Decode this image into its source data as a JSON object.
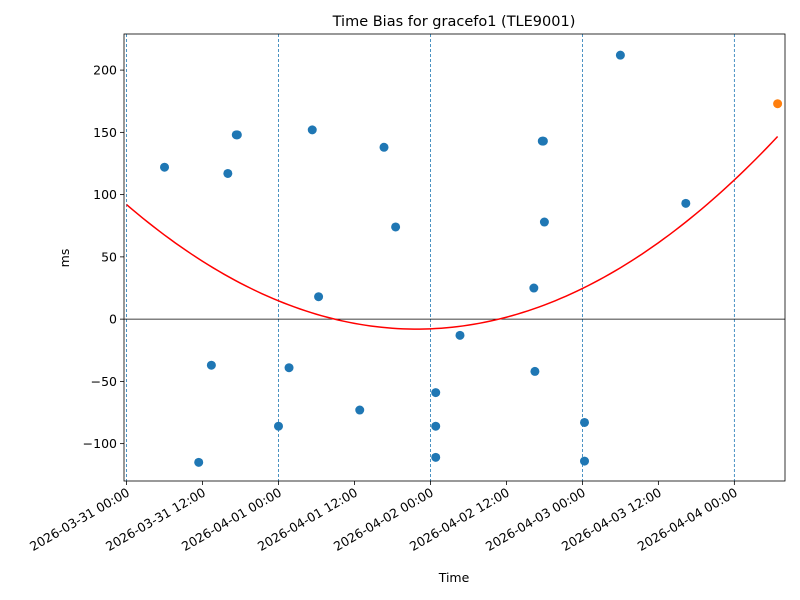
{
  "chart_data": {
    "type": "scatter",
    "title": "Time Bias for gracefo1 (TLE9001)",
    "xlabel": "Time",
    "ylabel": "ms",
    "x_axis": "datetime",
    "xlim": [
      "2026-03-30 23:36",
      "2026-04-04 08:00"
    ],
    "ylim": [
      -130,
      229
    ],
    "xticks": [
      "2026-03-31 00:00",
      "2026-03-31 12:00",
      "2026-04-01 00:00",
      "2026-04-01 12:00",
      "2026-04-02 00:00",
      "2026-04-02 12:00",
      "2026-04-03 00:00",
      "2026-04-03 12:00",
      "2026-04-04 00:00"
    ],
    "xtick_labels": [
      "2026-03-31 00:00",
      "2026-03-31 12:00",
      "2026-04-01 00:00",
      "2026-04-01 12:00",
      "2026-04-02 00:00",
      "2026-04-02 12:00",
      "2026-04-03 00:00",
      "2026-04-03 12:00",
      "2026-04-04 00:00"
    ],
    "yticks": [
      -100,
      -50,
      0,
      50,
      100,
      150,
      200
    ],
    "grid": false,
    "vertical_day_lines": [
      "2026-03-31 00:00",
      "2026-04-01 00:00",
      "2026-04-02 00:00",
      "2026-04-03 00:00",
      "2026-04-04 00:00"
    ],
    "zero_line": true,
    "colors": {
      "points": "#1f77b4",
      "last_point": "#ff7f0e",
      "fit": "#ff0000",
      "day_lines": "#1f77b4"
    },
    "points": [
      {
        "x": "2026-03-31 06:00",
        "y": 122
      },
      {
        "x": "2026-03-31 11:24",
        "y": -115
      },
      {
        "x": "2026-03-31 13:24",
        "y": -37
      },
      {
        "x": "2026-03-31 16:00",
        "y": 117
      },
      {
        "x": "2026-03-31 17:20",
        "y": 148
      },
      {
        "x": "2026-03-31 17:30",
        "y": 148
      },
      {
        "x": "2026-04-01 00:00",
        "y": -86
      },
      {
        "x": "2026-04-01 01:40",
        "y": -39
      },
      {
        "x": "2026-04-01 05:20",
        "y": 152
      },
      {
        "x": "2026-04-01 06:20",
        "y": 18
      },
      {
        "x": "2026-04-01 12:50",
        "y": -73
      },
      {
        "x": "2026-04-01 16:40",
        "y": 138
      },
      {
        "x": "2026-04-01 18:30",
        "y": 74
      },
      {
        "x": "2026-04-02 00:50",
        "y": -59
      },
      {
        "x": "2026-04-02 00:50",
        "y": -86
      },
      {
        "x": "2026-04-02 00:50",
        "y": -111
      },
      {
        "x": "2026-04-02 04:40",
        "y": -13
      },
      {
        "x": "2026-04-02 16:20",
        "y": 25
      },
      {
        "x": "2026-04-02 16:30",
        "y": -42
      },
      {
        "x": "2026-04-02 17:40",
        "y": 143
      },
      {
        "x": "2026-04-02 17:50",
        "y": 143
      },
      {
        "x": "2026-04-02 18:00",
        "y": 78
      },
      {
        "x": "2026-04-03 00:20",
        "y": -83
      },
      {
        "x": "2026-04-03 00:20",
        "y": -114
      },
      {
        "x": "2026-04-03 06:00",
        "y": 212
      },
      {
        "x": "2026-04-03 16:20",
        "y": 93
      },
      {
        "x": "2026-04-04 06:50",
        "y": 173,
        "highlight": true
      }
    ],
    "fit": {
      "type": "quadratic",
      "vertex_x": "2026-04-01 21:50",
      "vertex_y": -8,
      "start": {
        "x": "2026-03-31 00:00",
        "y": 92
      },
      "end": {
        "x": "2026-04-04 06:50",
        "y": 173
      }
    }
  }
}
